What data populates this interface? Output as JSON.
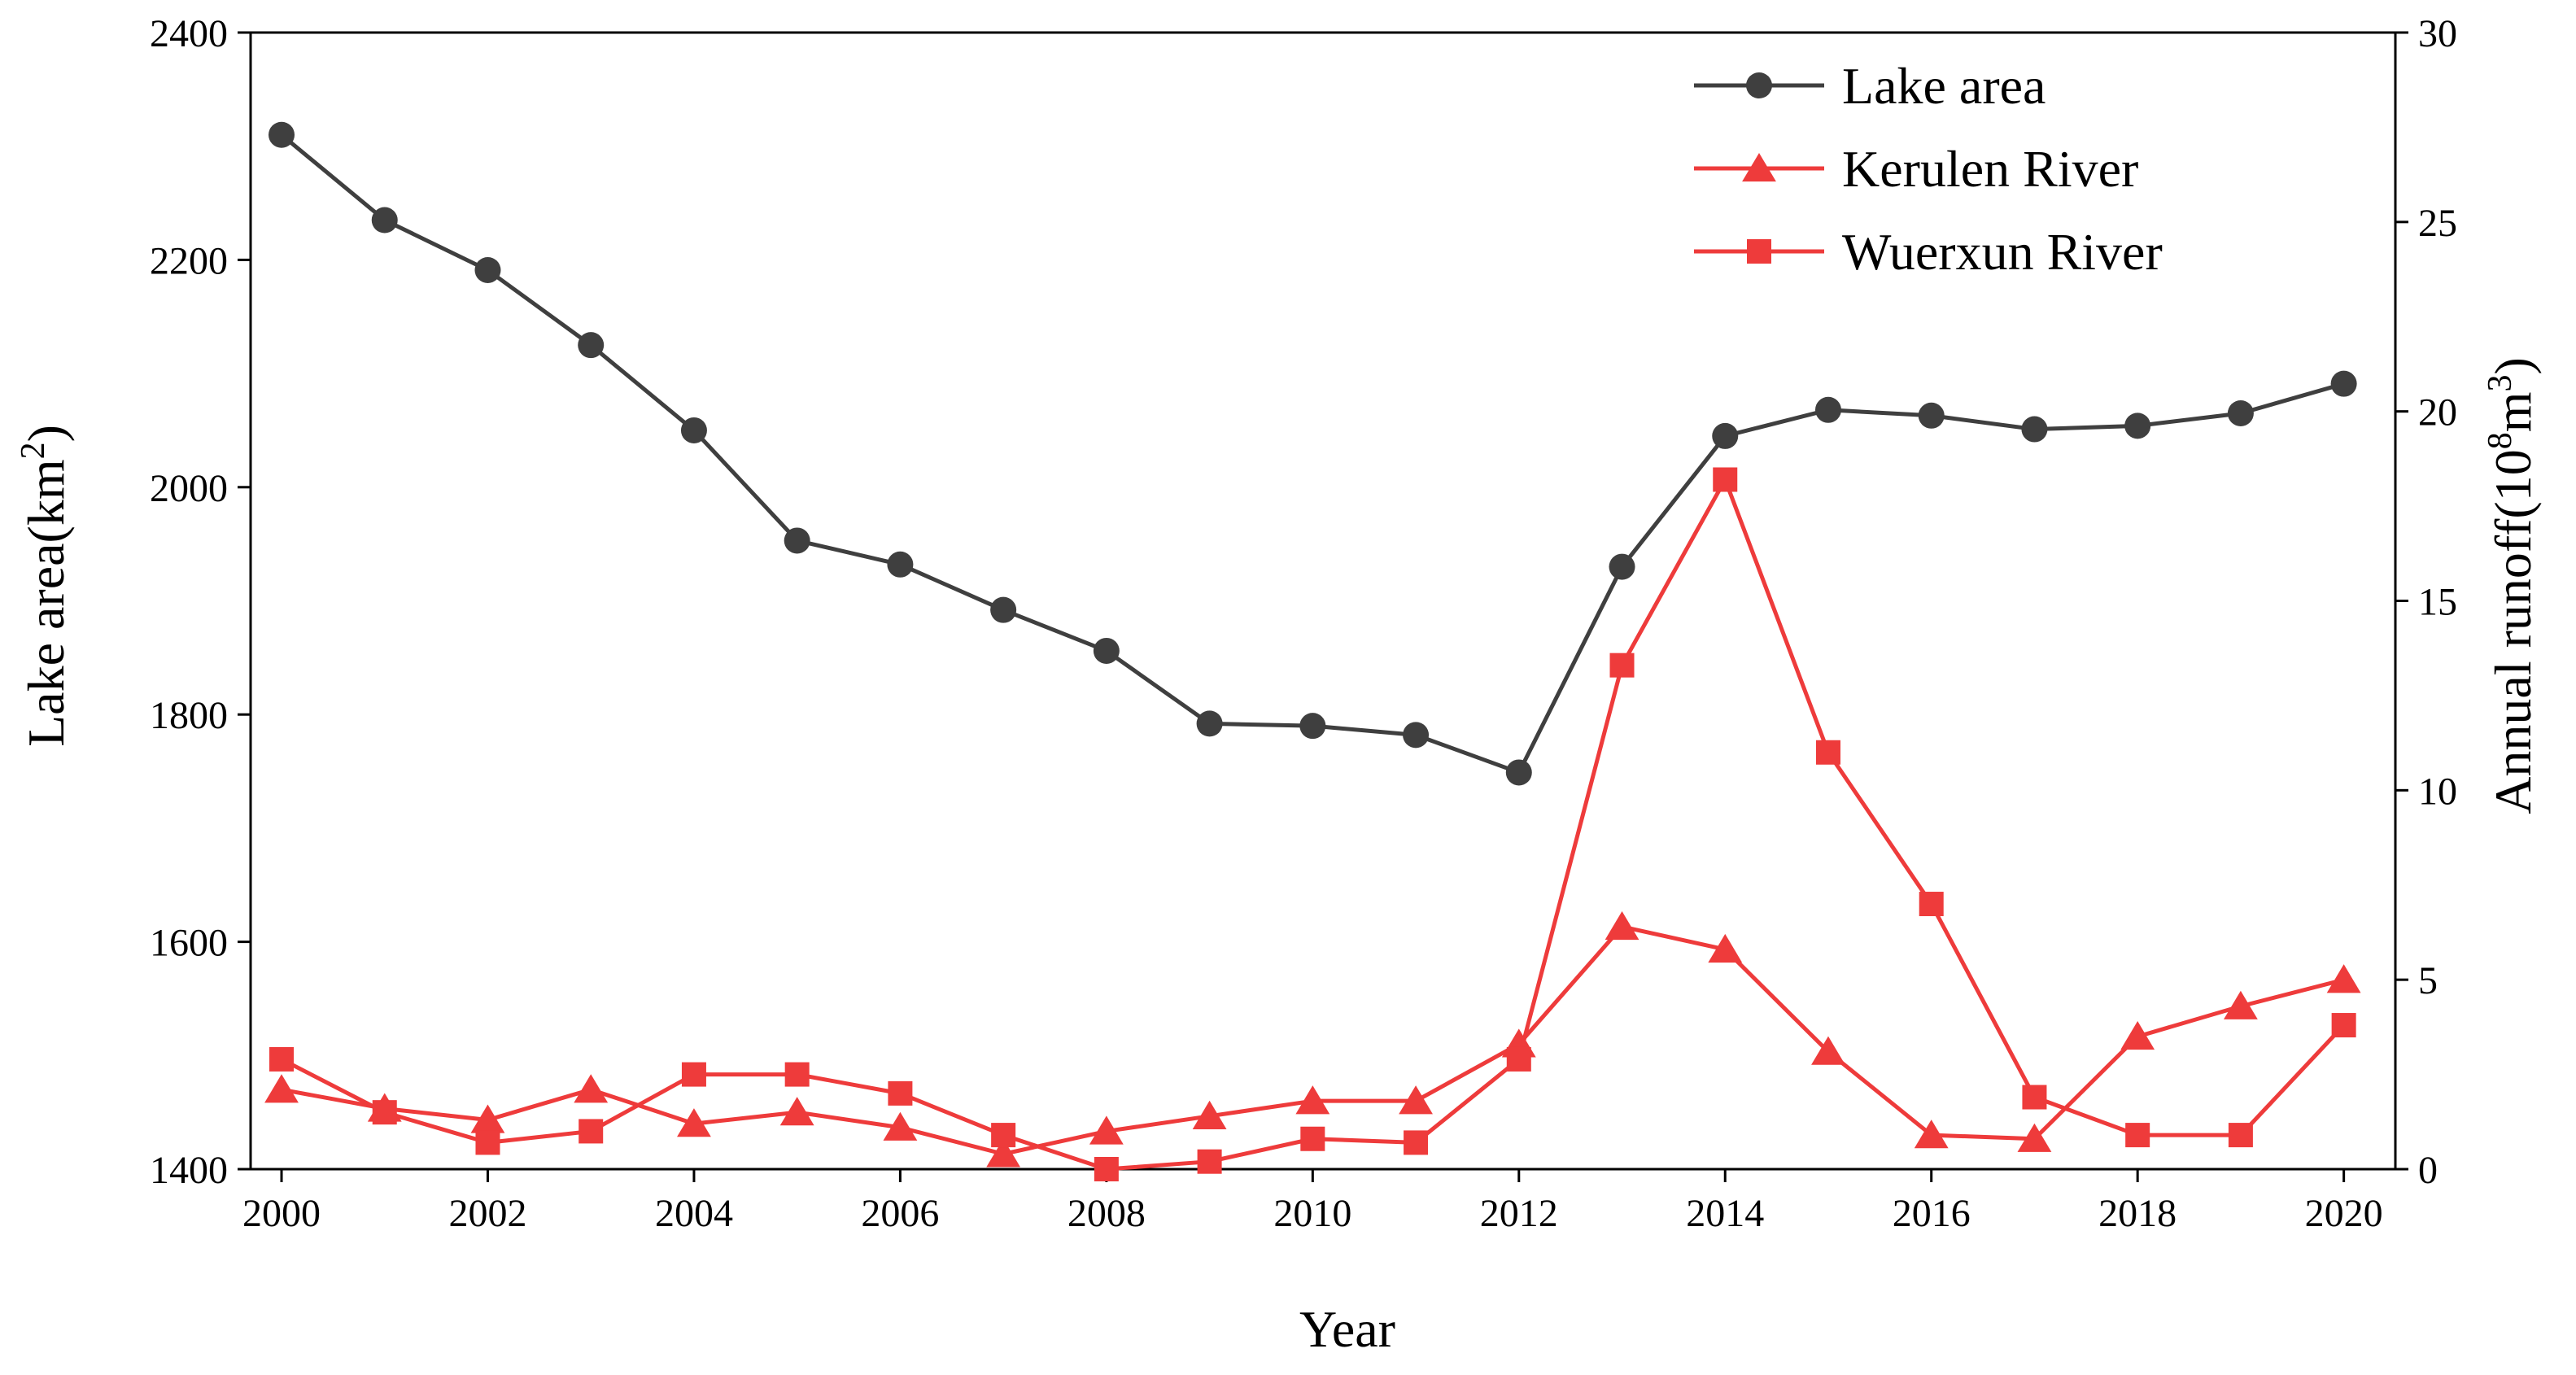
{
  "chart_data": {
    "type": "line",
    "x": [
      2000,
      2001,
      2002,
      2003,
      2004,
      2005,
      2006,
      2007,
      2008,
      2009,
      2010,
      2011,
      2012,
      2013,
      2014,
      2015,
      2016,
      2017,
      2018,
      2019,
      2020
    ],
    "xlabel": "Year",
    "ylabel_left_main": "Lake area(km",
    "ylabel_left_sup": "2",
    "ylabel_left_close": ")",
    "ylabel_right_main": "Annual runoff(10",
    "ylabel_right_sup1": "8",
    "ylabel_right_mid": "m",
    "ylabel_right_sup2": "3",
    "ylabel_right_close": ")",
    "ylim_left": [
      1400,
      2400
    ],
    "ylim_right": [
      0,
      30
    ],
    "xlim": [
      1999.7,
      2020.5
    ],
    "x_ticks": [
      2000,
      2002,
      2004,
      2006,
      2008,
      2010,
      2012,
      2014,
      2016,
      2018,
      2020
    ],
    "y_ticks_left": [
      1400,
      1600,
      1800,
      2000,
      2200,
      2400
    ],
    "y_ticks_right": [
      0,
      5,
      10,
      15,
      20,
      25,
      30
    ],
    "legend_position": "top-right",
    "series": [
      {
        "name": "Lake area",
        "axis": "left",
        "marker": "circle",
        "color": "#3f3f3f",
        "values": [
          2310,
          2235,
          2191,
          2125,
          2050,
          1953,
          1932,
          1892,
          1856,
          1792,
          1790,
          1782,
          1749,
          1930,
          2045,
          2068,
          2063,
          2051,
          2054,
          2065,
          2091
        ]
      },
      {
        "name": "Kerulen River",
        "axis": "right",
        "marker": "triangle",
        "color": "#ee3b3b",
        "values": [
          2.1,
          1.6,
          1.3,
          2.1,
          1.2,
          1.5,
          1.1,
          0.4,
          1.0,
          1.4,
          1.8,
          1.8,
          3.3,
          6.4,
          5.8,
          3.1,
          0.9,
          0.8,
          3.5,
          4.3,
          5.0
        ]
      },
      {
        "name": "Wuerxun River",
        "axis": "right",
        "marker": "square",
        "color": "#ee3b3b",
        "values": [
          2.9,
          1.5,
          0.7,
          1.0,
          2.5,
          2.5,
          2.0,
          0.9,
          0.0,
          0.2,
          0.8,
          0.7,
          2.9,
          13.3,
          18.2,
          11.0,
          7.0,
          1.9,
          0.9,
          0.9,
          3.8
        ]
      }
    ]
  }
}
